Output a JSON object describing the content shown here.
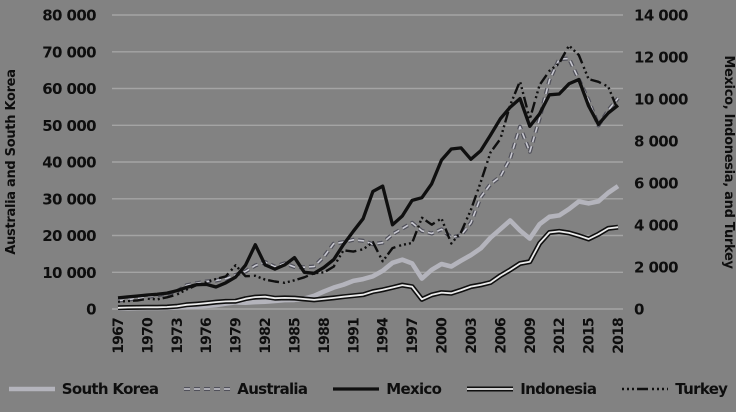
{
  "chart_data": {
    "type": "line",
    "title": "",
    "background_color": "#828282",
    "gridline_color": "#a4a4a4",
    "text_color": "#0e0e0e",
    "grid": "horizontal",
    "legend_position": "bottom",
    "years": [
      1967,
      1968,
      1969,
      1970,
      1971,
      1972,
      1973,
      1974,
      1975,
      1976,
      1977,
      1978,
      1979,
      1980,
      1981,
      1982,
      1983,
      1984,
      1985,
      1986,
      1987,
      1988,
      1989,
      1990,
      1991,
      1992,
      1993,
      1994,
      1995,
      1996,
      1997,
      1998,
      1999,
      2000,
      2001,
      2002,
      2003,
      2004,
      2005,
      2006,
      2007,
      2008,
      2009,
      2010,
      2011,
      2012,
      2013,
      2014,
      2015,
      2016,
      2017,
      2018
    ],
    "x_tick_labels": [
      "1967",
      "1970",
      "1973",
      "1976",
      "1979",
      "1982",
      "1985",
      "1988",
      "1991",
      "1994",
      "1997",
      "2000",
      "2003",
      "2006",
      "2009",
      "2012",
      "2015",
      "2018"
    ],
    "left_axis": {
      "label": "Australia and South Korea",
      "min": 0,
      "max": 80000,
      "tick_step": 10000,
      "tick_labels": [
        "0",
        "10 000",
        "20 000",
        "30 000",
        "40 000",
        "50 000",
        "60 000",
        "70 000",
        "80 000"
      ]
    },
    "right_axis": {
      "label": "Mexico, Indonesia, and Turkey",
      "min": 0,
      "max": 14000,
      "tick_step": 2000,
      "tick_labels": [
        "0",
        "2 000",
        "4 000",
        "6 000",
        "8 000",
        "10 000",
        "12 000",
        "14 000"
      ]
    },
    "series": [
      {
        "name": "South Korea",
        "axis": "left",
        "style": "solid",
        "color": "#b4b4bc",
        "width": 4.6,
        "values": [
          161,
          198,
          243,
          279,
          301,
          324,
          406,
          563,
          615,
          834,
          1056,
          1459,
          1784,
          1715,
          1883,
          1992,
          2199,
          2413,
          2482,
          2835,
          3555,
          4754,
          5817,
          6610,
          7637,
          8127,
          8885,
          10385,
          12565,
          13403,
          12398,
          8282,
          10672,
          12257,
          11561,
          13165,
          14673,
          16496,
          19403,
          21743,
          24086,
          21350,
          19144,
          23087,
          25100,
          25467,
          27183,
          29250,
          28732,
          29289,
          31617,
          33447
        ]
      },
      {
        "name": "Australia",
        "axis": "left",
        "style": "dashed",
        "color": "#50505a",
        "core_color": "#c8c8d0",
        "width": 4,
        "values": [
          2277,
          2552,
          2874,
          3305,
          3711,
          4164,
          4764,
          6473,
          6993,
          7475,
          7766,
          8240,
          9282,
          10194,
          11834,
          12766,
          11518,
          12432,
          11437,
          11366,
          11562,
          14242,
          17782,
          18211,
          18820,
          18570,
          17634,
          18046,
          20320,
          21874,
          23469,
          21252,
          20533,
          21679,
          19491,
          20082,
          23447,
          30431,
          33999,
          36045,
          40960,
          49602,
          42772,
          51874,
          62245,
          68012,
          68150,
          62510,
          56755,
          49971,
          54028,
          57354
        ]
      },
      {
        "name": "Mexico",
        "axis": "right",
        "style": "solid",
        "color": "#0f0f0f",
        "width": 3.3,
        "values": [
          528,
          574,
          619,
          668,
          700,
          759,
          871,
          1030,
          1158,
          1175,
          1047,
          1248,
          1518,
          2086,
          3060,
          2100,
          1900,
          2100,
          2450,
          1750,
          1700,
          1980,
          2350,
          3070,
          3700,
          4300,
          5600,
          5850,
          4010,
          4430,
          5170,
          5300,
          5960,
          7090,
          7620,
          7670,
          7130,
          7540,
          8280,
          9060,
          9610,
          10020,
          8700,
          9290,
          10200,
          10240,
          10725,
          10930,
          9670,
          8790,
          9330,
          9700
        ]
      },
      {
        "name": "Indonesia",
        "axis": "right",
        "style": "double",
        "color": "#0f0f0f",
        "core_color": "#ececec",
        "width": 5,
        "values": [
          55,
          70,
          75,
          80,
          83,
          93,
          127,
          198,
          233,
          278,
          327,
          360,
          370,
          492,
          567,
          585,
          513,
          527,
          517,
          475,
          434,
          481,
          527,
          585,
          632,
          682,
          827,
          912,
          1026,
          1137,
          1064,
          464,
          671,
          780,
          748,
          900,
          1066,
          1150,
          1263,
          1590,
          1860,
          2167,
          2254,
          3122,
          3643,
          3694,
          3624,
          3492,
          3332,
          3563,
          3837,
          3894
        ]
      },
      {
        "name": "Turkey",
        "axis": "right",
        "style": "dash-dot",
        "color": "#0f0f0f",
        "width": 2.4,
        "values": [
          349,
          382,
          410,
          489,
          455,
          558,
          687,
          928,
          1136,
          1276,
          1427,
          1550,
          2079,
          1564,
          1579,
          1402,
          1310,
          1246,
          1368,
          1510,
          1705,
          1745,
          2021,
          2794,
          2735,
          2842,
          3180,
          2270,
          2898,
          3053,
          3144,
          4348,
          4012,
          4316,
          3120,
          3660,
          4718,
          6040,
          7456,
          8102,
          9712,
          10850,
          9036,
          10672,
          11336,
          11707,
          12543,
          12096,
          10949,
          10817,
          10589,
          9453
        ]
      }
    ]
  }
}
